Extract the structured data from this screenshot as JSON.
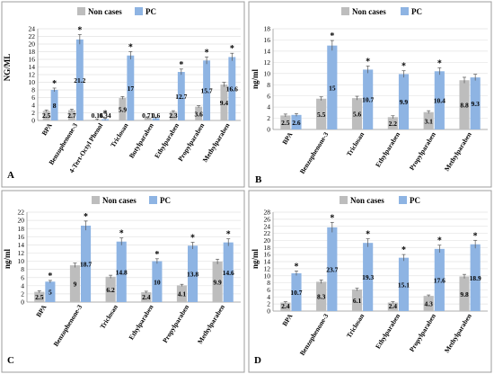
{
  "colors": {
    "non_cases": "#BDBDBD",
    "pc": "#8EB4E3",
    "grid": "#E3E3E3",
    "axis": "#9A9A9A",
    "panel_border": "#9C9C9C"
  },
  "chart_data": [
    {
      "panel": "A",
      "type": "bar",
      "ylabel": "NG/ML",
      "ylim": [
        0,
        24
      ],
      "yticks": [
        0,
        2,
        4,
        6,
        8,
        10,
        12,
        14,
        16,
        18,
        20,
        22,
        24
      ],
      "legend_position": "top-center",
      "categories": [
        "BPA",
        "Benzophenone-3",
        "4-Tert-Octyl Phenol",
        "Triclosan",
        "Butylparaben",
        "Ethylparaben",
        "Propylparaben",
        "Methylparaben"
      ],
      "series": [
        {
          "name": "Non cases",
          "values": [
            2.5,
            2.7,
            0.16,
            5.9,
            0.71,
            2.3,
            3.6,
            9.4
          ],
          "labels": [
            "2.5",
            "2.7",
            "0.16",
            "5.9",
            "0.71",
            "2.3",
            "3.6",
            "9.4"
          ]
        },
        {
          "name": "PC",
          "values": [
            8,
            21.2,
            0.34,
            17,
            0.6,
            12.7,
            15.7,
            16.6
          ],
          "labels": [
            "8",
            "21.2",
            "0.34",
            "17",
            "0.6",
            "12.7",
            "15.7",
            "16.6"
          ]
        }
      ],
      "significant": [
        true,
        true,
        true,
        true,
        false,
        true,
        true,
        true
      ]
    },
    {
      "panel": "B",
      "type": "bar",
      "ylabel": "ng/ml",
      "ylim": [
        0,
        18
      ],
      "yticks": [
        0,
        2,
        4,
        6,
        8,
        10,
        12,
        14,
        16,
        18
      ],
      "legend_position": "top-center",
      "categories": [
        "BPA",
        "Benzophenone-3",
        "Triclosan",
        "Ethylparaben",
        "Propylparaben",
        "Methylparaben"
      ],
      "series": [
        {
          "name": "Non cases",
          "values": [
            2.5,
            5.5,
            5.6,
            2.2,
            3.1,
            8.8
          ],
          "labels": [
            "2.5",
            "5.5",
            "5.6",
            "2.2",
            "3.1",
            "8.8"
          ]
        },
        {
          "name": "PC",
          "values": [
            2.6,
            15,
            10.7,
            9.9,
            10.4,
            9.3
          ],
          "labels": [
            "2.6",
            "15",
            "10.7",
            "9.9",
            "10.4",
            "9.3"
          ]
        }
      ],
      "significant": [
        false,
        true,
        true,
        true,
        true,
        false
      ]
    },
    {
      "panel": "C",
      "type": "bar",
      "ylabel": "ng/ml",
      "ylim": [
        0,
        22
      ],
      "yticks": [
        0,
        2,
        4,
        6,
        8,
        10,
        12,
        14,
        16,
        18,
        20,
        22
      ],
      "legend_position": "top-center",
      "categories": [
        "BPA",
        "Benzophenone-3",
        "Triclosan",
        "Ethylparaben",
        "Propylparaben",
        "Methylparaben"
      ],
      "series": [
        {
          "name": "Non cases",
          "values": [
            2.5,
            9,
            6.2,
            2.4,
            4.1,
            9.9
          ],
          "labels": [
            "2.5",
            "9",
            "6.2",
            "2.4",
            "4.1",
            "9.9"
          ]
        },
        {
          "name": "PC",
          "values": [
            5,
            18.7,
            14.8,
            10,
            13.8,
            14.6
          ],
          "labels": [
            "5",
            "18.7",
            "14.8",
            "10",
            "13.8",
            "14.6"
          ]
        }
      ],
      "significant": [
        true,
        true,
        true,
        true,
        true,
        true
      ]
    },
    {
      "panel": "D",
      "type": "bar",
      "ylabel": "ng/ml",
      "ylim": [
        0,
        28
      ],
      "yticks": [
        0,
        2,
        4,
        6,
        8,
        10,
        12,
        14,
        16,
        18,
        20,
        22,
        24,
        26,
        28
      ],
      "legend_position": "top-center",
      "categories": [
        "BPA",
        "Benzophenone-3",
        "Triclosan",
        "Ethylparaben",
        "Propylparaben",
        "Methylparaben"
      ],
      "series": [
        {
          "name": "Non cases",
          "values": [
            2.4,
            8.3,
            6.1,
            2.4,
            4.3,
            9.8
          ],
          "labels": [
            "2.4",
            "8.3",
            "6.1",
            "2.4",
            "4.3",
            "9.8"
          ]
        },
        {
          "name": "PC",
          "values": [
            10.7,
            23.7,
            19.3,
            15.1,
            17.6,
            18.9
          ],
          "labels": [
            "10.7",
            "23.7",
            "19.3",
            "15.1",
            "17.6",
            "18.9"
          ]
        }
      ],
      "significant": [
        true,
        true,
        true,
        true,
        true,
        true
      ]
    }
  ]
}
